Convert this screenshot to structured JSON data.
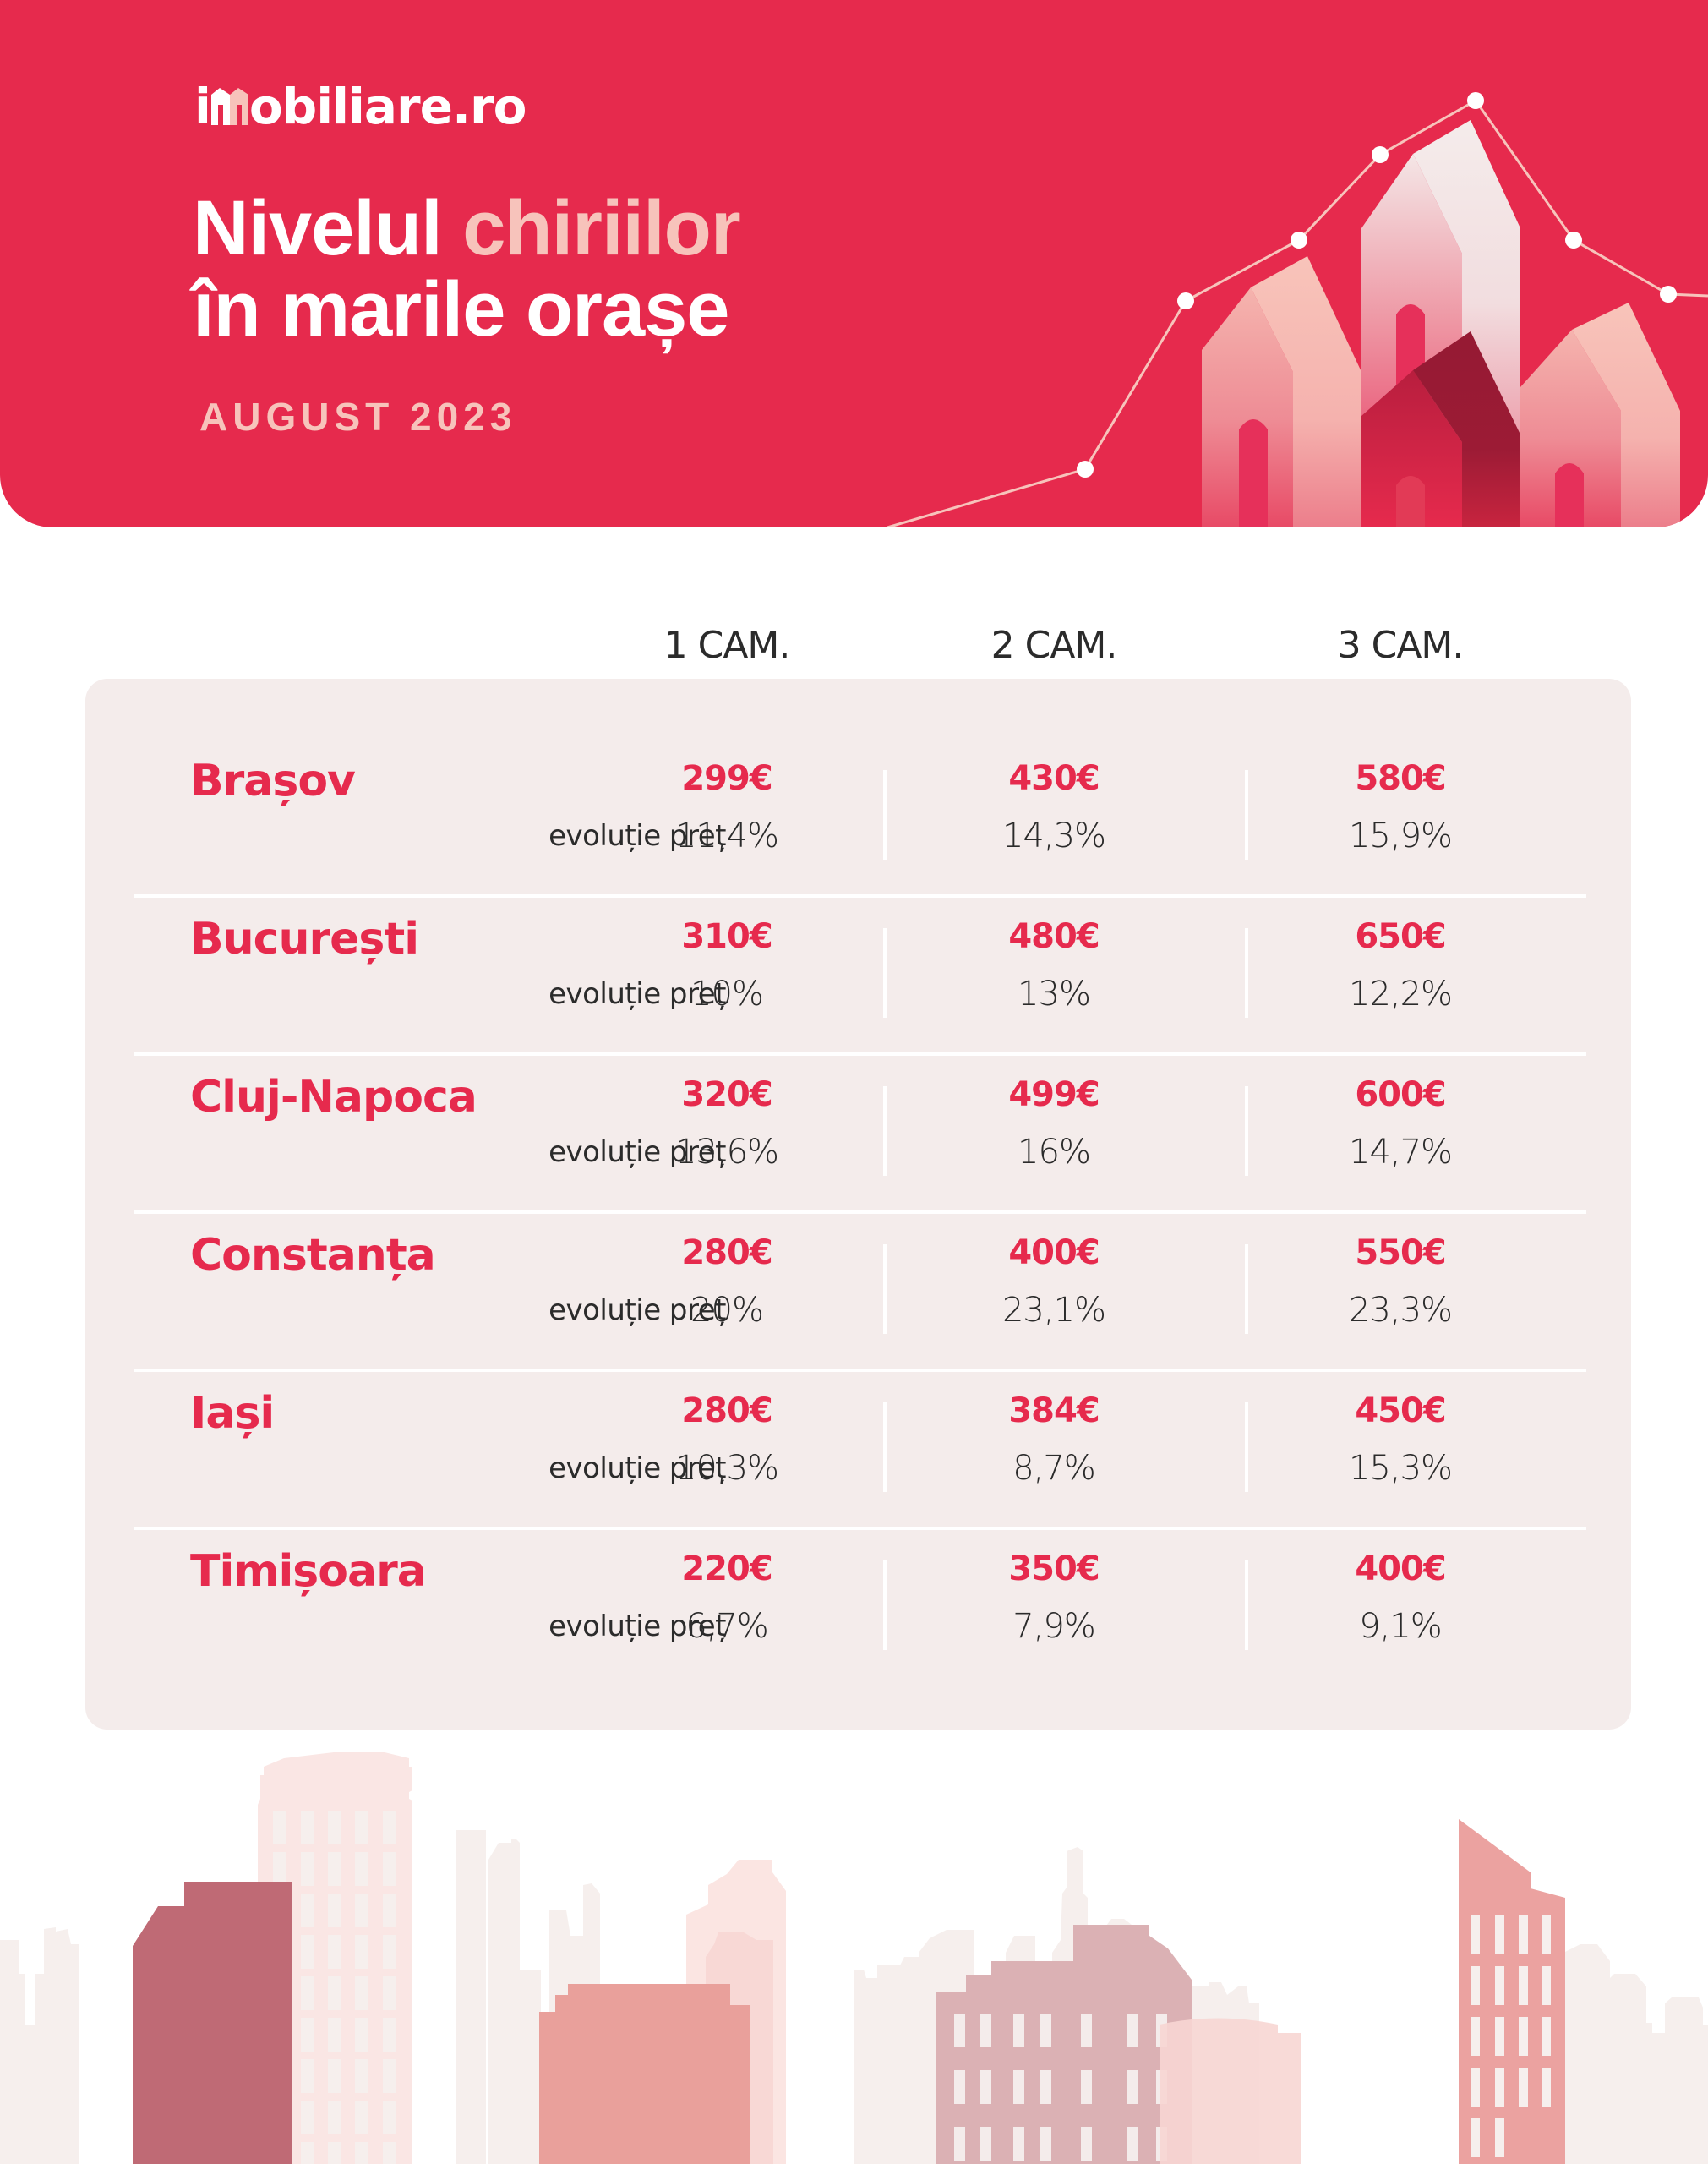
{
  "brand": {
    "logo_prefix": "i",
    "logo_suffix": "obiliare.ro",
    "logo_icon": "house-m-icon",
    "primary_color": "#E62A4D",
    "accent_color": "#F7C3BB",
    "card_color": "#F4ECEB"
  },
  "header": {
    "title_part1": "Nivelul ",
    "title_accent": "chiriilor",
    "title_line2": "în marile orașe",
    "subtitle": "AUGUST 2023",
    "illustration": "rising-line-chart-with-houses"
  },
  "table": {
    "columns": [
      "1 CAM.",
      "2 CAM.",
      "3 CAM."
    ],
    "evolution_label": "evoluție preț",
    "rows": [
      {
        "city": "Brașov",
        "prices": [
          "299€",
          "430€",
          "580€"
        ],
        "evolution": [
          "11,4%",
          "14,3%",
          "15,9%"
        ]
      },
      {
        "city": "București",
        "prices": [
          "310€",
          "480€",
          "650€"
        ],
        "evolution": [
          "10%",
          "13%",
          "12,2%"
        ]
      },
      {
        "city": "Cluj-Napoca",
        "prices": [
          "320€",
          "499€",
          "600€"
        ],
        "evolution": [
          "13,6%",
          "16%",
          "14,7%"
        ]
      },
      {
        "city": "Constanța",
        "prices": [
          "280€",
          "400€",
          "550€"
        ],
        "evolution": [
          "20%",
          "23,1%",
          "23,3%"
        ]
      },
      {
        "city": "Iași",
        "prices": [
          "280€",
          "384€",
          "450€"
        ],
        "evolution": [
          "10,3%",
          "8,7%",
          "15,3%"
        ]
      },
      {
        "city": "Timișoara",
        "prices": [
          "220€",
          "350€",
          "400€"
        ],
        "evolution": [
          "6,7%",
          "7,9%",
          "9,1%"
        ]
      }
    ]
  },
  "footer": {
    "illustration": "city-skyline"
  }
}
